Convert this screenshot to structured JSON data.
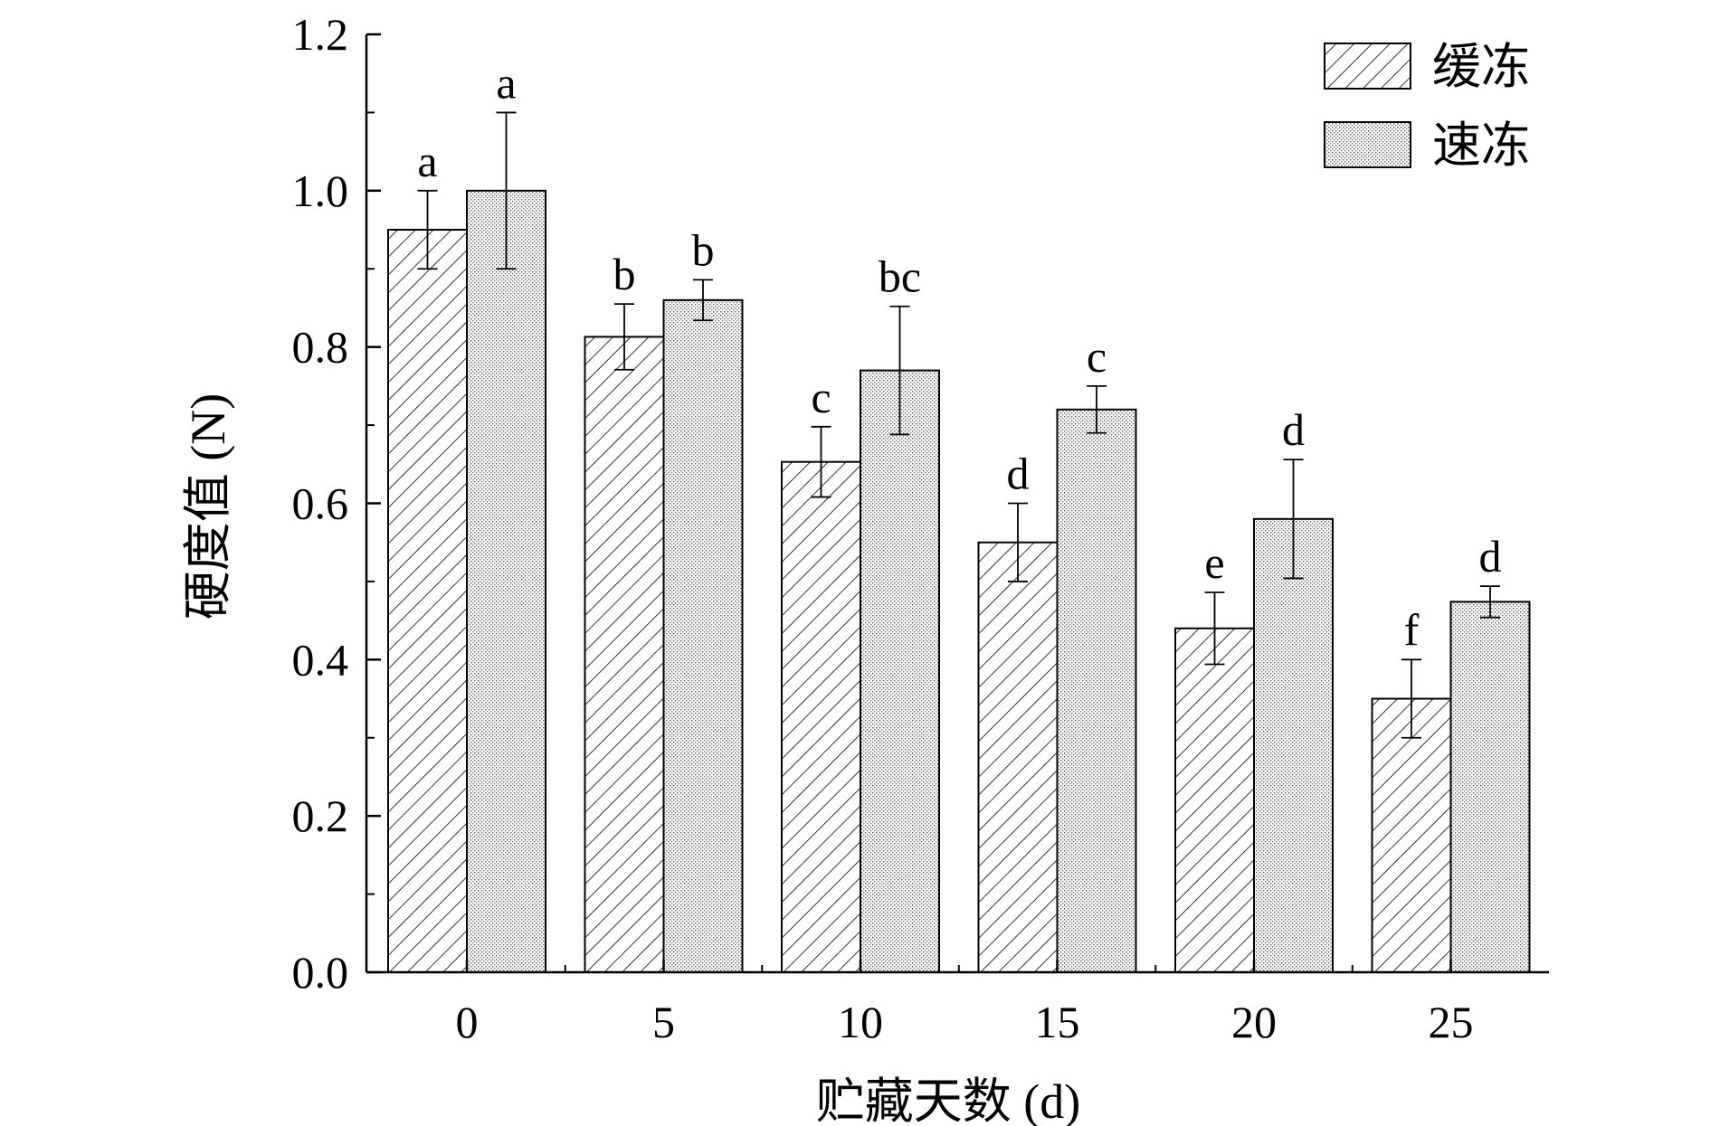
{
  "chart_data": {
    "type": "bar",
    "xlabel": "贮藏天数 (d)",
    "ylabel": "硬度值 (N)",
    "categories": [
      "0",
      "5",
      "10",
      "15",
      "20",
      "25"
    ],
    "ylim": [
      0,
      1.2
    ],
    "yticks": [
      "0.0",
      "0.2",
      "0.4",
      "0.6",
      "0.8",
      "1.0",
      "1.2"
    ],
    "legend_position": "top-right",
    "grid": false,
    "series": [
      {
        "name": "缓冻",
        "pattern": "diagonal-hatch",
        "values": [
          0.95,
          0.813,
          0.653,
          0.55,
          0.44,
          0.35
        ],
        "errors": [
          0.05,
          0.042,
          0.045,
          0.05,
          0.046,
          0.05
        ],
        "labels": [
          "a",
          "b",
          "c",
          "d",
          "e",
          "f"
        ]
      },
      {
        "name": "速冻",
        "pattern": "fine-dots",
        "values": [
          1.0,
          0.86,
          0.77,
          0.72,
          0.58,
          0.474
        ],
        "errors": [
          0.1,
          0.026,
          0.082,
          0.03,
          0.076,
          0.02
        ],
        "labels": [
          "a",
          "b",
          "bc",
          "c",
          "d",
          "d"
        ]
      }
    ]
  },
  "colors": {
    "bar_stroke": "#000000",
    "background": "#ffffff"
  }
}
